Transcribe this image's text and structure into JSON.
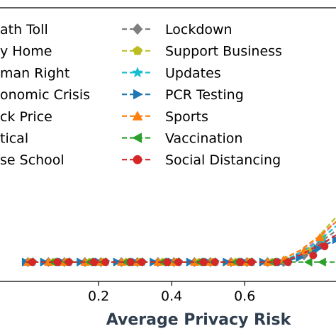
{
  "chart_data": {
    "type": "line",
    "title": "",
    "xlabel": "Average Privacy Risk",
    "ylabel": "",
    "xlim": [
      -0.07,
      0.85
    ],
    "ylim": [
      0,
      1
    ],
    "xticks": [
      0.2,
      0.4,
      0.6
    ],
    "grid": false,
    "legend_placement": "upper-left",
    "x": [
      0.0,
      0.05,
      0.1,
      0.15,
      0.2,
      0.25,
      0.3,
      0.35,
      0.4,
      0.45,
      0.5,
      0.55,
      0.6,
      0.65,
      0.7,
      0.75,
      0.8,
      0.85
    ],
    "series": [
      {
        "name": "Death Toll",
        "display": "ath Toll",
        "color": "#1f77b4",
        "marker": "none",
        "values": [
          0.02,
          0.02,
          0.02,
          0.02,
          0.02,
          0.02,
          0.02,
          0.02,
          0.02,
          0.02,
          0.02,
          0.02,
          0.02,
          0.02,
          0.02,
          0.02,
          0.02,
          0.02
        ],
        "in_plot": false
      },
      {
        "name": "Stay Home",
        "display": "y Home",
        "color": "#ff7f0e",
        "marker": "none",
        "values": [
          0.02,
          0.02,
          0.02,
          0.02,
          0.02,
          0.02,
          0.02,
          0.02,
          0.02,
          0.02,
          0.02,
          0.02,
          0.02,
          0.02,
          0.02,
          0.02,
          0.02,
          0.02
        ],
        "in_plot": false
      },
      {
        "name": "Human Right",
        "display": "man Right",
        "color": "#2ca02c",
        "marker": "none",
        "values": [
          0.02,
          0.02,
          0.02,
          0.02,
          0.02,
          0.02,
          0.02,
          0.02,
          0.02,
          0.02,
          0.02,
          0.02,
          0.02,
          0.02,
          0.02,
          0.02,
          0.02,
          0.02
        ],
        "in_plot": false
      },
      {
        "name": "Economic Crisis",
        "display": "onomic Crisis",
        "color": "#d62728",
        "marker": "none",
        "values": [
          0.02,
          0.02,
          0.02,
          0.02,
          0.02,
          0.02,
          0.02,
          0.02,
          0.02,
          0.02,
          0.02,
          0.02,
          0.02,
          0.02,
          0.02,
          0.02,
          0.02,
          0.02
        ],
        "in_plot": false
      },
      {
        "name": "Stock Price",
        "display": "ck Price",
        "color": "#9467bd",
        "marker": "none",
        "values": [
          0.02,
          0.02,
          0.02,
          0.02,
          0.02,
          0.02,
          0.02,
          0.02,
          0.02,
          0.02,
          0.02,
          0.02,
          0.02,
          0.02,
          0.02,
          0.02,
          0.02,
          0.02
        ],
        "in_plot": false
      },
      {
        "name": "Political",
        "display": "tical",
        "color": "#8c564b",
        "marker": "none",
        "values": [
          0.02,
          0.02,
          0.02,
          0.02,
          0.02,
          0.02,
          0.02,
          0.02,
          0.02,
          0.02,
          0.02,
          0.02,
          0.02,
          0.02,
          0.02,
          0.02,
          0.02,
          0.02
        ],
        "in_plot": false
      },
      {
        "name": "Close School",
        "display": "se School",
        "color": "#e377c2",
        "marker": "none",
        "values": [
          0.02,
          0.02,
          0.02,
          0.02,
          0.02,
          0.02,
          0.02,
          0.02,
          0.02,
          0.02,
          0.02,
          0.02,
          0.02,
          0.02,
          0.02,
          0.06,
          0.12,
          0.2
        ],
        "in_plot": true
      },
      {
        "name": "Lockdown",
        "display": "Lockdown",
        "color": "#7f7f7f",
        "marker": "diamond",
        "values": [
          0.02,
          0.02,
          0.02,
          0.02,
          0.02,
          0.02,
          0.02,
          0.02,
          0.02,
          0.02,
          0.02,
          0.02,
          0.02,
          0.02,
          0.02,
          0.05,
          0.1,
          0.16
        ],
        "in_plot": true
      },
      {
        "name": "Support Business",
        "display": "Support Business",
        "color": "#bcbd22",
        "marker": "pentagon",
        "values": [
          0.02,
          0.02,
          0.02,
          0.02,
          0.02,
          0.02,
          0.02,
          0.02,
          0.02,
          0.02,
          0.02,
          0.02,
          0.02,
          0.02,
          0.03,
          0.07,
          0.13,
          0.22
        ],
        "in_plot": true
      },
      {
        "name": "Updates",
        "display": "Updates",
        "color": "#17becf",
        "marker": "star",
        "values": [
          0.02,
          0.02,
          0.02,
          0.02,
          0.02,
          0.02,
          0.02,
          0.02,
          0.02,
          0.02,
          0.02,
          0.02,
          0.02,
          0.02,
          0.02,
          0.06,
          0.11,
          0.18
        ],
        "in_plot": true
      },
      {
        "name": "PCR Testing",
        "display": "PCR Testing",
        "color": "#1f77b4",
        "marker": "triangle-right",
        "values": [
          0.02,
          0.02,
          0.02,
          0.02,
          0.02,
          0.02,
          0.02,
          0.02,
          0.02,
          0.02,
          0.02,
          0.02,
          0.02,
          0.02,
          0.02,
          0.04,
          0.08,
          0.12
        ],
        "in_plot": true
      },
      {
        "name": "Sports",
        "display": "Sports",
        "color": "#ff7f0e",
        "marker": "triangle-up",
        "values": [
          0.02,
          0.02,
          0.02,
          0.02,
          0.02,
          0.02,
          0.02,
          0.02,
          0.02,
          0.02,
          0.02,
          0.02,
          0.02,
          0.02,
          0.03,
          0.07,
          0.13,
          0.2
        ],
        "in_plot": true
      },
      {
        "name": "Vaccination",
        "display": "Vaccination",
        "color": "#2ca02c",
        "marker": "triangle-left",
        "values": [
          0.02,
          0.02,
          0.02,
          0.02,
          0.02,
          0.02,
          0.02,
          0.02,
          0.02,
          0.02,
          0.02,
          0.02,
          0.02,
          0.02,
          0.02,
          0.02,
          0.02,
          0.02
        ],
        "in_plot": true
      },
      {
        "name": "Social Distancing",
        "display": "Social Distancing",
        "color": "#d62728",
        "marker": "circle",
        "values": [
          0.02,
          0.02,
          0.02,
          0.02,
          0.02,
          0.02,
          0.02,
          0.02,
          0.02,
          0.02,
          0.02,
          0.02,
          0.02,
          0.02,
          0.02,
          0.05,
          0.09,
          0.14
        ],
        "in_plot": true
      }
    ]
  }
}
